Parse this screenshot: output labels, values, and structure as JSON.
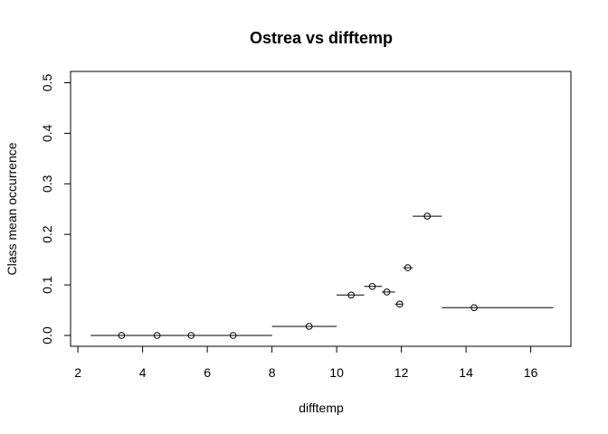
{
  "chart_data": {
    "type": "scatter",
    "title": "Ostrea vs difftemp",
    "xlabel": "difftemp",
    "ylabel": "Class mean occurrence",
    "xlim": [
      2,
      16.7
    ],
    "ylim": [
      0,
      0.5
    ],
    "x_ticks": [
      2,
      4,
      6,
      8,
      10,
      12,
      14,
      16
    ],
    "y_ticks": [
      0.0,
      0.1,
      0.2,
      0.3,
      0.4,
      0.5
    ],
    "x_tick_labels": [
      "2",
      "4",
      "6",
      "8",
      "10",
      "12",
      "14",
      "16"
    ],
    "y_tick_labels": [
      "0.0",
      "0.1",
      "0.2",
      "0.3",
      "0.4",
      "0.5"
    ],
    "grid": false,
    "legend": "none",
    "points": [
      {
        "x": 3.35,
        "y": 0.0,
        "x_min": 2.4,
        "x_max": 8.0
      },
      {
        "x": 4.45,
        "y": 0.0,
        "x_min": 2.4,
        "x_max": 8.0
      },
      {
        "x": 5.5,
        "y": 0.0,
        "x_min": 2.4,
        "x_max": 8.0
      },
      {
        "x": 6.8,
        "y": 0.0,
        "x_min": 2.4,
        "x_max": 8.0
      },
      {
        "x": 9.15,
        "y": 0.018,
        "x_min": 8.0,
        "x_max": 10.0
      },
      {
        "x": 10.45,
        "y": 0.08,
        "x_min": 10.0,
        "x_max": 10.85
      },
      {
        "x": 11.1,
        "y": 0.097,
        "x_min": 10.85,
        "x_max": 11.4
      },
      {
        "x": 11.55,
        "y": 0.086,
        "x_min": 11.4,
        "x_max": 11.8
      },
      {
        "x": 11.95,
        "y": 0.062,
        "x_min": 11.8,
        "x_max": 12.05
      },
      {
        "x": 12.2,
        "y": 0.134,
        "x_min": 12.05,
        "x_max": 12.35
      },
      {
        "x": 12.8,
        "y": 0.236,
        "x_min": 12.35,
        "x_max": 13.25
      },
      {
        "x": 14.25,
        "y": 0.055,
        "x_min": 13.25,
        "x_max": 16.7
      }
    ]
  }
}
